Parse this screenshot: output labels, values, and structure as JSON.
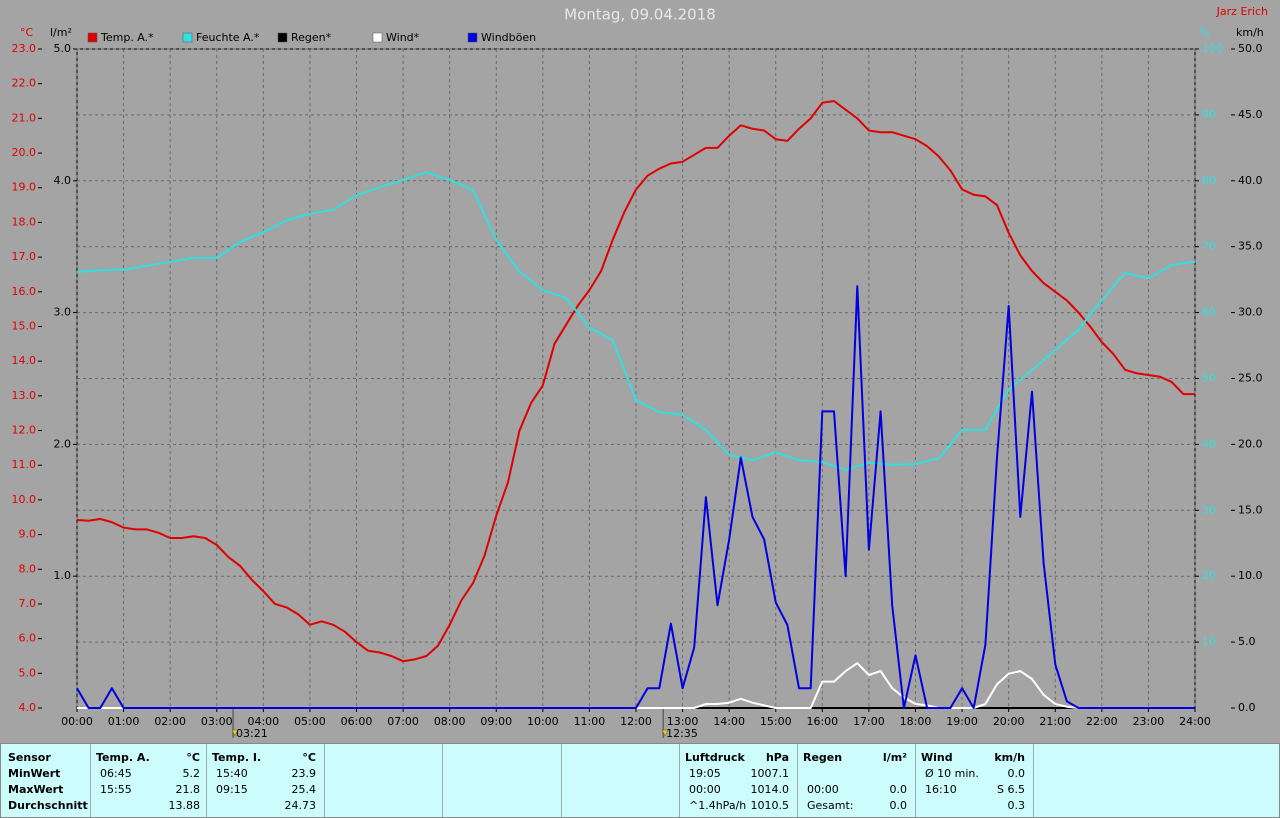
{
  "chart_data": {
    "type": "line",
    "title": "Montag, 09.04.2018",
    "author": "Jarz Erich",
    "units": {
      "y": "°C",
      "y3": "l/m²",
      "y2": "%",
      "y4": "km/h"
    },
    "xlim": [
      0,
      24
    ],
    "xticks": [
      {
        "value": 0,
        "label": "00:00"
      },
      {
        "value": 1,
        "label": "01:00"
      },
      {
        "value": 2,
        "label": "02:00"
      },
      {
        "value": 3,
        "label": "03:00"
      },
      {
        "value": 4,
        "label": "04:00"
      },
      {
        "value": 5,
        "label": "05:00"
      },
      {
        "value": 6,
        "label": "06:00"
      },
      {
        "value": 7,
        "label": "07:00"
      },
      {
        "value": 8,
        "label": "08:00"
      },
      {
        "value": 9,
        "label": "09:00"
      },
      {
        "value": 10,
        "label": "10:00"
      },
      {
        "value": 11,
        "label": "11:00"
      },
      {
        "value": 12,
        "label": "12:00"
      },
      {
        "value": 13,
        "label": "13:00"
      },
      {
        "value": 14,
        "label": "14:00"
      },
      {
        "value": 15,
        "label": "15:00"
      },
      {
        "value": 16,
        "label": "16:00"
      },
      {
        "value": 17,
        "label": "17:00"
      },
      {
        "value": 18,
        "label": "18:00"
      },
      {
        "value": 19,
        "label": "19:00"
      },
      {
        "value": 20,
        "label": "20:00"
      },
      {
        "value": 21,
        "label": "21:00"
      },
      {
        "value": 22,
        "label": "22:00"
      },
      {
        "value": 23,
        "label": "23:00"
      },
      {
        "value": 24,
        "label": "24:00"
      }
    ],
    "ylim": [
      4,
      23
    ],
    "yticks": [
      {
        "value": 4,
        "label": "4.0"
      },
      {
        "value": 5,
        "label": "5.0"
      },
      {
        "value": 6,
        "label": "6.0"
      },
      {
        "value": 7,
        "label": "7.0"
      },
      {
        "value": 8,
        "label": "8.0"
      },
      {
        "value": 9,
        "label": "9.0"
      },
      {
        "value": 10,
        "label": "10.0"
      },
      {
        "value": 11,
        "label": "11.0"
      },
      {
        "value": 12,
        "label": "12.0"
      },
      {
        "value": 13,
        "label": "13.0"
      },
      {
        "value": 14,
        "label": "14.0"
      },
      {
        "value": 15,
        "label": "15.0"
      },
      {
        "value": 16,
        "label": "16.0"
      },
      {
        "value": 17,
        "label": "17.0"
      },
      {
        "value": 18,
        "label": "18.0"
      },
      {
        "value": 19,
        "label": "19.0"
      },
      {
        "value": 20,
        "label": "20.0"
      },
      {
        "value": 21,
        "label": "21.0"
      },
      {
        "value": 22,
        "label": "22.0"
      },
      {
        "value": 23,
        "label": "23.0"
      }
    ],
    "y3lim": [
      0,
      5
    ],
    "y3ticks": [
      {
        "value": 1,
        "label": "1.0"
      },
      {
        "value": 2,
        "label": "2.0"
      },
      {
        "value": 3,
        "label": "3.0"
      },
      {
        "value": 4,
        "label": "4.0"
      },
      {
        "value": 5,
        "label": "5.0"
      }
    ],
    "y2lim": [
      0,
      100
    ],
    "y2ticks": [
      10,
      20,
      30,
      40,
      50,
      60,
      70,
      80,
      90,
      100
    ],
    "y4lim": [
      0,
      50
    ],
    "y4ticks": [
      {
        "value": 0,
        "label": "0.0"
      },
      {
        "value": 5,
        "label": "5.0"
      },
      {
        "value": 10,
        "label": "10.0"
      },
      {
        "value": 15,
        "label": "15.0"
      },
      {
        "value": 20,
        "label": "20.0"
      },
      {
        "value": 25,
        "label": "25.0"
      },
      {
        "value": 30,
        "label": "30.0"
      },
      {
        "value": 35,
        "label": "35.0"
      },
      {
        "value": 40,
        "label": "40.0"
      },
      {
        "value": 45,
        "label": "45.0"
      },
      {
        "value": 50,
        "label": "50.0"
      }
    ],
    "grid": true,
    "markers": [
      {
        "x": 3.35,
        "label": "03:21"
      },
      {
        "x": 12.583,
        "label": "12:35"
      }
    ],
    "x": [
      0,
      0.25,
      0.5,
      0.75,
      1,
      1.25,
      1.5,
      1.75,
      2,
      2.25,
      2.5,
      2.75,
      3,
      3.25,
      3.5,
      3.75,
      4,
      4.25,
      4.5,
      4.75,
      5,
      5.25,
      5.5,
      5.75,
      6,
      6.25,
      6.5,
      6.75,
      7,
      7.25,
      7.5,
      7.75,
      8,
      8.25,
      8.5,
      8.75,
      9,
      9.25,
      9.5,
      9.75,
      10,
      10.25,
      10.5,
      10.75,
      11,
      11.25,
      11.5,
      11.75,
      12,
      12.25,
      12.5,
      12.75,
      13,
      13.25,
      13.5,
      13.75,
      14,
      14.25,
      14.5,
      14.75,
      15,
      15.25,
      15.5,
      15.75,
      16,
      16.25,
      16.5,
      16.75,
      17,
      17.25,
      17.5,
      17.75,
      18,
      18.25,
      18.5,
      18.75,
      19,
      19.25,
      19.5,
      19.75,
      20,
      20.25,
      20.5,
      20.75,
      21,
      21.25,
      21.5,
      21.75,
      22,
      22.25,
      22.5,
      22.75,
      23,
      23.25,
      23.5,
      23.75,
      24
    ],
    "series": [
      {
        "name": "Temp. A.*",
        "color": "#e00000",
        "axis": "y",
        "values": [
          9.42,
          9.4,
          9.45,
          9.36,
          9.2,
          9.15,
          9.15,
          9.05,
          8.9,
          8.9,
          8.95,
          8.9,
          8.7,
          8.35,
          8.1,
          7.7,
          7.37,
          7.0,
          6.9,
          6.7,
          6.4,
          6.5,
          6.4,
          6.2,
          5.9,
          5.65,
          5.6,
          5.5,
          5.35,
          5.4,
          5.5,
          5.8,
          6.4,
          7.1,
          7.6,
          8.4,
          9.55,
          10.5,
          12.0,
          12.8,
          13.3,
          14.5,
          15.05,
          15.6,
          16.05,
          16.6,
          17.5,
          18.3,
          18.95,
          19.35,
          19.55,
          19.7,
          19.75,
          19.95,
          20.15,
          20.15,
          20.5,
          20.8,
          20.7,
          20.65,
          20.4,
          20.35,
          20.7,
          21.0,
          21.45,
          21.5,
          21.25,
          21.0,
          20.65,
          20.6,
          20.6,
          20.5,
          20.4,
          20.2,
          19.9,
          19.5,
          18.95,
          18.8,
          18.75,
          18.5,
          17.7,
          17.05,
          16.6,
          16.25,
          16.0,
          15.75,
          15.4,
          15.0,
          14.55,
          14.2,
          13.75,
          13.65,
          13.6,
          13.55,
          13.4,
          13.05,
          13.05
        ]
      },
      {
        "name": "Feuchte A.*",
        "color": "#30e0e0",
        "axis": "y2",
        "values": [
          66.2,
          66.3,
          66.4,
          66.5,
          66.5,
          66.8,
          67.1,
          67.4,
          67.7,
          68.0,
          68.3,
          68.3,
          68.3,
          69.5,
          70.7,
          71.5,
          72.2,
          73.1,
          74,
          74.5,
          75,
          75.3,
          75.6,
          76.7,
          77.8,
          78.4,
          79,
          79.6,
          80.1,
          80.7,
          81.3,
          80.7,
          80.1,
          79.4,
          78.6,
          74.8,
          71,
          68.6,
          66.2,
          64.8,
          63.4,
          62.8,
          62.2,
          60,
          57.7,
          56.8,
          55.8,
          51.3,
          46.7,
          45.8,
          44.9,
          44.7,
          44.5,
          43.4,
          42.2,
          40.3,
          38.4,
          38,
          37.6,
          38.2,
          38.8,
          38.2,
          37.6,
          37.5,
          37.3,
          36.7,
          36.1,
          36.7,
          37.2,
          37.1,
          36.9,
          37,
          37,
          37.5,
          37.9,
          40,
          42.2,
          42.2,
          42.2,
          45.3,
          48.3,
          49.8,
          51.3,
          52.8,
          54.3,
          55.9,
          57.4,
          59.7,
          61.9,
          64,
          66,
          65.6,
          65.2,
          66.2,
          67.2,
          67.5,
          67.7
        ]
      },
      {
        "name": "Regen*",
        "color": "#000000",
        "axis": "y3",
        "values": [
          0,
          0,
          0,
          0,
          0,
          0,
          0,
          0,
          0,
          0,
          0,
          0,
          0,
          0,
          0,
          0,
          0,
          0,
          0,
          0,
          0,
          0,
          0,
          0,
          0,
          0,
          0,
          0,
          0,
          0,
          0,
          0,
          0,
          0,
          0,
          0,
          0,
          0,
          0,
          0,
          0,
          0,
          0,
          0,
          0,
          0,
          0,
          0,
          0,
          0,
          0,
          0,
          0,
          0,
          0,
          0,
          0,
          0,
          0,
          0,
          0,
          0,
          0,
          0,
          0,
          0,
          0,
          0,
          0,
          0,
          0,
          0,
          0,
          0,
          0,
          0,
          0,
          0,
          0,
          0,
          0,
          0,
          0,
          0,
          0,
          0,
          0,
          0,
          0,
          0,
          0,
          0,
          0,
          0,
          0,
          0,
          0
        ]
      },
      {
        "name": "Wind*",
        "color": "#ffffff",
        "axis": "y4",
        "values": [
          0,
          0,
          0,
          0,
          0,
          0,
          0,
          0,
          0,
          0,
          0,
          0,
          0,
          0,
          0,
          0,
          0,
          0,
          0,
          0,
          0,
          0,
          0,
          0,
          0,
          0,
          0,
          0,
          0,
          0,
          0,
          0,
          0,
          0,
          0,
          0,
          0,
          0,
          0,
          0,
          0,
          0,
          0,
          0,
          0,
          0,
          0,
          0,
          0,
          0,
          0,
          0,
          0,
          0,
          0.3,
          0.3,
          0.4,
          0.7,
          0.4,
          0.2,
          0,
          0,
          0,
          0,
          2.0,
          2.0,
          2.8,
          3.4,
          2.5,
          2.8,
          1.5,
          0.8,
          0.3,
          0.2,
          0,
          0,
          0,
          0,
          0.3,
          1.8,
          2.6,
          2.8,
          2.2,
          1.0,
          0.3,
          0.1,
          0,
          0,
          0,
          0,
          0,
          0,
          0,
          0,
          0,
          0,
          0
        ]
      },
      {
        "name": "Windböen",
        "color": "#0000e0",
        "axis": "y4",
        "values": [
          1.5,
          0,
          0,
          1.5,
          0,
          0,
          0,
          0,
          0,
          0,
          0,
          0,
          0,
          0,
          0,
          0,
          0,
          0,
          0,
          0,
          0,
          0,
          0,
          0,
          0,
          0,
          0,
          0,
          0,
          0,
          0,
          0,
          0,
          0,
          0,
          0,
          0,
          0,
          0,
          0,
          0,
          0,
          0,
          0,
          0,
          0,
          0,
          0,
          0,
          1.5,
          1.5,
          6.4,
          1.5,
          4.6,
          16.0,
          7.8,
          12.8,
          19.0,
          14.5,
          12.8,
          8.0,
          6.3,
          1.5,
          1.5,
          22.5,
          22.5,
          10.0,
          32.0,
          12.0,
          22.5,
          7.8,
          0,
          4.0,
          0,
          0,
          0,
          1.5,
          0,
          4.8,
          19.0,
          30.5,
          14.5,
          24.0,
          11.0,
          3.3,
          0.5,
          0,
          0,
          0,
          0,
          0,
          0,
          0,
          0,
          0,
          0,
          0
        ]
      }
    ]
  },
  "stats": {
    "row_labels": [
      "Sensor",
      "MinWert",
      "MaxWert",
      "Durchschnitt"
    ],
    "panels": [
      {
        "title": "Temp. A.",
        "unit": "°C",
        "rows": [
          {
            "time": "06:45",
            "value": "5.2"
          },
          {
            "time": "15:55",
            "value": "21.8"
          },
          {
            "value": "13.88"
          }
        ]
      },
      {
        "title": "Temp. I.",
        "unit": "°C",
        "rows": [
          {
            "time": "15:40",
            "value": "23.9"
          },
          {
            "time": "09:15",
            "value": "25.4"
          },
          {
            "value": "24.73"
          }
        ]
      },
      {
        "title": "Luftdruck",
        "unit": "hPa",
        "rows": [
          {
            "time": "19:05",
            "value": "1007.1"
          },
          {
            "time": "00:00",
            "value": "1014.0"
          },
          {
            "time": "^1.4hPa/h",
            "value": "1010.5"
          }
        ]
      },
      {
        "title": "Regen",
        "unit": "l/m²",
        "rows": [
          {},
          {
            "time": "00:00",
            "value": "0.0"
          },
          {
            "time": "Gesamt:",
            "value": "0.0"
          }
        ]
      },
      {
        "title": "Wind",
        "unit": "km/h",
        "rows": [
          {
            "time": "Ø 10 min.",
            "value": "0.0"
          },
          {
            "time": "16:10",
            "value": "S 6.5"
          },
          {
            "value": "0.3"
          }
        ]
      }
    ]
  }
}
